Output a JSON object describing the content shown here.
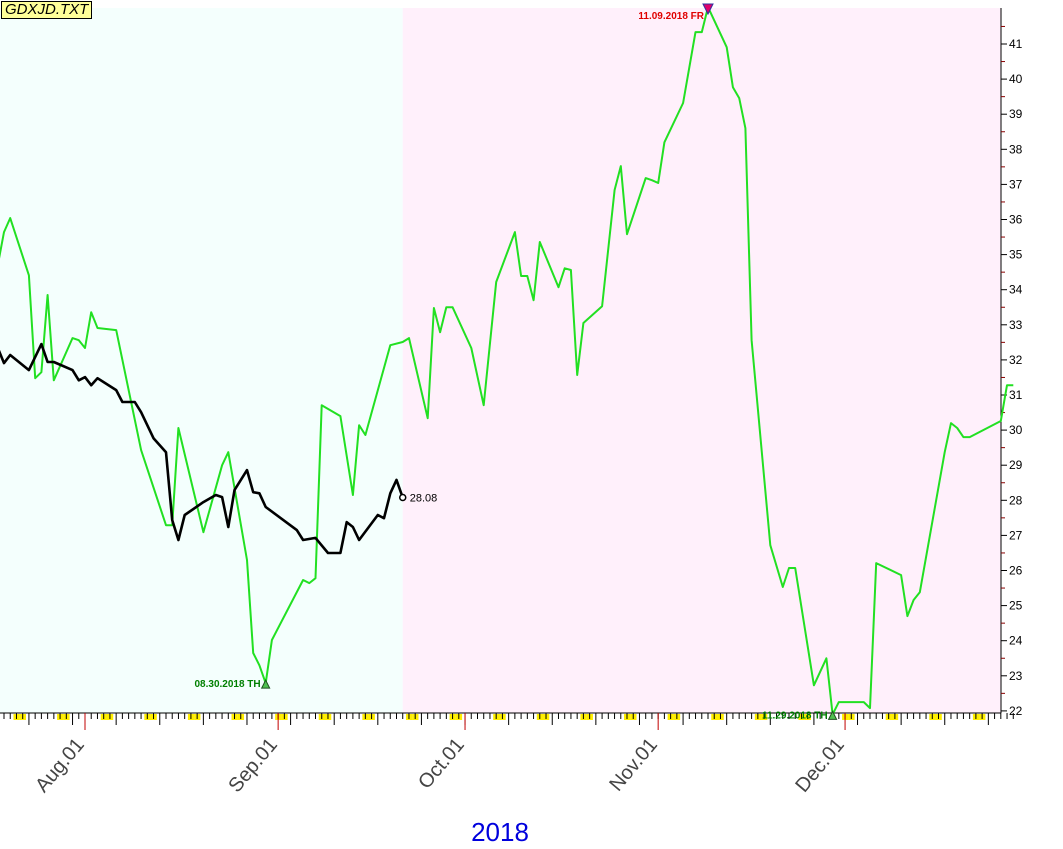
{
  "chart_data": {
    "type": "line",
    "title": "GDXJD.TXT",
    "year_label": "2018",
    "x_tick_labels": [
      "Aug.01",
      "Sep.01",
      "Oct.01",
      "Nov.01",
      "Dec.01"
    ],
    "x_tick_dates": [
      "2018-08-01",
      "2018-09-01",
      "2018-10-01",
      "2018-11-01",
      "2018-12-01"
    ],
    "xlim": [
      "2018-07-18",
      "2018-12-28"
    ],
    "ylim": [
      21.9,
      42.1
    ],
    "y_ticks": [
      22,
      23,
      24,
      25,
      26,
      27,
      28,
      29,
      30,
      31,
      32,
      33,
      34,
      35,
      36,
      37,
      38,
      39,
      40,
      41
    ],
    "right_axis": true,
    "shaded_regions": [
      {
        "from": "2018-07-18",
        "to": "2018-09-21",
        "color": "#f4fffd"
      },
      {
        "from": "2018-09-21",
        "to": "2018-12-28",
        "color": "#fff0fb"
      }
    ],
    "annotations": [
      {
        "text": "11.09.2018 FR",
        "date": "2018-11-09",
        "value": 42.05,
        "type": "high",
        "color": "#e00000"
      },
      {
        "text": "08.30.2018 TH",
        "date": "2018-08-30",
        "value": 22.79,
        "type": "low",
        "color": "#008000"
      },
      {
        "text": "11.29.2018 TH",
        "date": "2018-11-29",
        "value": 21.9,
        "type": "low",
        "color": "#008000"
      }
    ],
    "last_value_label": "28.08",
    "series": [
      {
        "color": "#22e022",
        "points": [
          [
            "2018-07-18",
            34.7
          ],
          [
            "2018-07-19",
            35.64
          ],
          [
            "2018-07-20",
            36.04
          ],
          [
            "2018-07-23",
            34.41
          ],
          [
            "2018-07-24",
            31.48
          ],
          [
            "2018-07-25",
            31.65
          ],
          [
            "2018-07-26",
            33.85
          ],
          [
            "2018-07-27",
            31.42
          ],
          [
            "2018-07-30",
            32.62
          ],
          [
            "2018-07-31",
            32.56
          ],
          [
            "2018-08-01",
            32.34
          ],
          [
            "2018-08-02",
            33.36
          ],
          [
            "2018-08-03",
            32.91
          ],
          [
            "2018-08-06",
            32.85
          ],
          [
            "2018-08-10",
            29.43
          ],
          [
            "2018-08-14",
            27.29
          ],
          [
            "2018-08-15",
            27.29
          ],
          [
            "2018-08-16",
            30.06
          ],
          [
            "2018-08-20",
            27.09
          ],
          [
            "2018-08-23",
            29.0
          ],
          [
            "2018-08-24",
            29.37
          ],
          [
            "2018-08-27",
            26.3
          ],
          [
            "2018-08-28",
            23.65
          ],
          [
            "2018-08-29",
            23.3
          ],
          [
            "2018-08-30",
            22.79
          ],
          [
            "2018-08-31",
            24.02
          ],
          [
            "2018-09-05",
            25.73
          ],
          [
            "2018-09-06",
            25.64
          ],
          [
            "2018-09-07",
            25.78
          ],
          [
            "2018-09-08",
            30.71
          ],
          [
            "2018-09-11",
            30.4
          ],
          [
            "2018-09-13",
            28.15
          ],
          [
            "2018-09-14",
            30.14
          ],
          [
            "2018-09-15",
            29.86
          ],
          [
            "2018-09-19",
            32.42
          ],
          [
            "2018-09-21",
            32.51
          ],
          [
            "2018-09-22",
            32.62
          ],
          [
            "2018-09-25",
            30.34
          ],
          [
            "2018-09-26",
            33.48
          ],
          [
            "2018-09-27",
            32.79
          ],
          [
            "2018-09-28",
            33.5
          ],
          [
            "2018-09-29",
            33.5
          ],
          [
            "2018-10-02",
            32.34
          ],
          [
            "2018-10-04",
            30.71
          ],
          [
            "2018-10-06",
            34.22
          ],
          [
            "2018-10-09",
            35.64
          ],
          [
            "2018-10-10",
            34.39
          ],
          [
            "2018-10-11",
            34.39
          ],
          [
            "2018-10-12",
            33.7
          ],
          [
            "2018-10-13",
            35.36
          ],
          [
            "2018-10-16",
            34.07
          ],
          [
            "2018-10-17",
            34.61
          ],
          [
            "2018-10-18",
            34.56
          ],
          [
            "2018-10-19",
            31.57
          ],
          [
            "2018-10-20",
            33.05
          ],
          [
            "2018-10-23",
            33.53
          ],
          [
            "2018-10-25",
            36.84
          ],
          [
            "2018-10-26",
            37.52
          ],
          [
            "2018-10-27",
            35.58
          ],
          [
            "2018-10-30",
            37.18
          ],
          [
            "2018-10-31",
            37.12
          ],
          [
            "2018-11-01",
            37.04
          ],
          [
            "2018-11-02",
            38.2
          ],
          [
            "2018-11-05",
            39.32
          ],
          [
            "2018-11-07",
            41.34
          ],
          [
            "2018-11-08",
            41.34
          ],
          [
            "2018-11-09",
            42.05
          ],
          [
            "2018-11-12",
            40.91
          ],
          [
            "2018-11-13",
            39.77
          ],
          [
            "2018-11-14",
            39.46
          ],
          [
            "2018-11-15",
            38.6
          ],
          [
            "2018-11-16",
            32.56
          ],
          [
            "2018-11-19",
            26.72
          ],
          [
            "2018-11-21",
            25.53
          ],
          [
            "2018-11-22",
            26.07
          ],
          [
            "2018-11-23",
            26.07
          ],
          [
            "2018-11-26",
            22.73
          ],
          [
            "2018-11-28",
            23.5
          ],
          [
            "2018-11-29",
            21.9
          ],
          [
            "2018-11-30",
            22.25
          ],
          [
            "2018-12-04",
            22.25
          ],
          [
            "2018-12-05",
            22.08
          ],
          [
            "2018-12-06",
            26.21
          ],
          [
            "2018-12-10",
            25.87
          ],
          [
            "2018-12-11",
            24.7
          ],
          [
            "2018-12-12",
            25.16
          ],
          [
            "2018-12-13",
            25.38
          ],
          [
            "2018-12-17",
            29.37
          ],
          [
            "2018-12-18",
            30.2
          ],
          [
            "2018-12-19",
            30.06
          ],
          [
            "2018-12-20",
            29.8
          ],
          [
            "2018-12-21",
            29.8
          ],
          [
            "2018-12-26",
            30.26
          ],
          [
            "2018-12-27",
            31.28
          ],
          [
            "2018-12-28",
            31.28
          ]
        ]
      },
      {
        "color": "#000000",
        "points": [
          [
            "2018-07-18",
            32.34
          ],
          [
            "2018-07-19",
            31.91
          ],
          [
            "2018-07-20",
            32.14
          ],
          [
            "2018-07-23",
            31.71
          ],
          [
            "2018-07-25",
            32.45
          ],
          [
            "2018-07-26",
            31.94
          ],
          [
            "2018-07-27",
            31.94
          ],
          [
            "2018-07-30",
            31.71
          ],
          [
            "2018-07-31",
            31.42
          ],
          [
            "2018-08-01",
            31.51
          ],
          [
            "2018-08-02",
            31.28
          ],
          [
            "2018-08-03",
            31.48
          ],
          [
            "2018-08-06",
            31.14
          ],
          [
            "2018-08-07",
            30.8
          ],
          [
            "2018-08-09",
            30.8
          ],
          [
            "2018-08-10",
            30.51
          ],
          [
            "2018-08-12",
            29.77
          ],
          [
            "2018-08-14",
            29.37
          ],
          [
            "2018-08-15",
            27.44
          ],
          [
            "2018-08-16",
            26.87
          ],
          [
            "2018-08-17",
            27.58
          ],
          [
            "2018-08-20",
            27.95
          ],
          [
            "2018-08-22",
            28.15
          ],
          [
            "2018-08-23",
            28.09
          ],
          [
            "2018-08-24",
            27.24
          ],
          [
            "2018-08-25",
            28.29
          ],
          [
            "2018-08-27",
            28.86
          ],
          [
            "2018-08-28",
            28.23
          ],
          [
            "2018-08-29",
            28.2
          ],
          [
            "2018-08-30",
            27.81
          ],
          [
            "2018-09-04",
            27.15
          ],
          [
            "2018-09-05",
            26.87
          ],
          [
            "2018-09-07",
            26.93
          ],
          [
            "2018-09-09",
            26.5
          ],
          [
            "2018-09-11",
            26.5
          ],
          [
            "2018-09-12",
            27.38
          ],
          [
            "2018-09-13",
            27.24
          ],
          [
            "2018-09-14",
            26.87
          ],
          [
            "2018-09-17",
            27.58
          ],
          [
            "2018-09-18",
            27.49
          ],
          [
            "2018-09-19",
            28.2
          ],
          [
            "2018-09-20",
            28.58
          ],
          [
            "2018-09-21",
            28.08
          ]
        ]
      }
    ]
  }
}
